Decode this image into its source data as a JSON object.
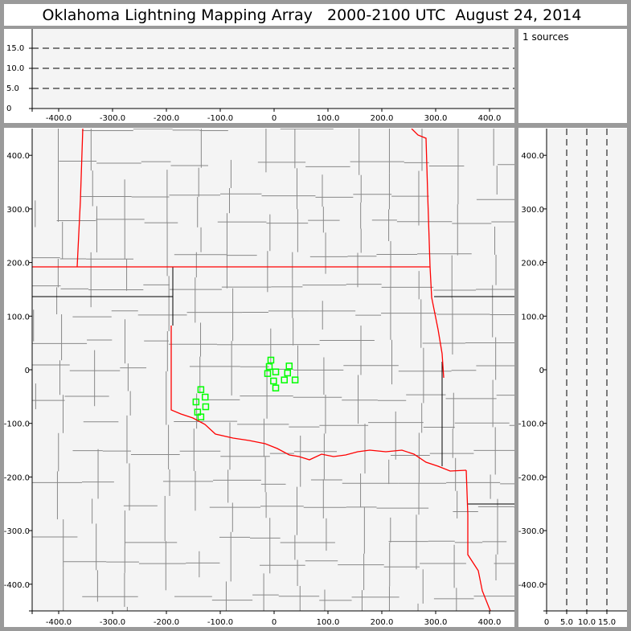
{
  "title": "Oklahoma Lightning Mapping Array   2000-2100 UTC  August 24, 2014",
  "legend": {
    "text": "1 sources"
  },
  "colors": {
    "station": "#00ff00",
    "state_border": "#ff0000",
    "county_border": "#888888",
    "plot_bg": "#f4f4f4",
    "frame": "#9a9a9a"
  },
  "chart_data": [
    {
      "type": "line",
      "panel": "altitude-vs-east-west",
      "xlim": [
        -450,
        445
      ],
      "ylim": [
        0,
        20
      ],
      "x_ticks": [
        "-400.0",
        "-300.0",
        "-200.0",
        "-100.0",
        "0",
        "100.0",
        "200.0",
        "300.0",
        "400.0"
      ],
      "x_tick_values": [
        -400,
        -300,
        -200,
        -100,
        0,
        100,
        200,
        300,
        400
      ],
      "y_ticks": [
        "0",
        "5.0",
        "10.0",
        "15.0"
      ],
      "y_tick_values": [
        0,
        5,
        10,
        15
      ],
      "grid": "dashed horizontal at 5, 10, 15"
    },
    {
      "type": "scatter",
      "panel": "plan-view-map",
      "xlim": [
        -450,
        445
      ],
      "ylim": [
        -450,
        450
      ],
      "x_ticks": [
        "-400.0",
        "-300.0",
        "-200.0",
        "-100.0",
        "0",
        "100.0",
        "200.0",
        "300.0",
        "400.0"
      ],
      "x_tick_values": [
        -400,
        -300,
        -200,
        -100,
        0,
        100,
        200,
        300,
        400
      ],
      "y_ticks": [
        "400.0",
        "300.0",
        "200.0",
        "100.0",
        "0",
        "-100.0",
        "-200.0",
        "-300.0",
        "-400.0"
      ],
      "y_tick_values": [
        400,
        300,
        200,
        100,
        0,
        -100,
        -200,
        -300,
        -400
      ],
      "marker": "hollow-square",
      "points": [
        {
          "x": -6,
          "y": 18
        },
        {
          "x": -9,
          "y": 6
        },
        {
          "x": 28,
          "y": 7
        },
        {
          "x": -12,
          "y": -7
        },
        {
          "x": 3,
          "y": -4
        },
        {
          "x": 25,
          "y": -6
        },
        {
          "x": -1,
          "y": -21
        },
        {
          "x": 19,
          "y": -19
        },
        {
          "x": 39,
          "y": -19
        },
        {
          "x": 3,
          "y": -34
        },
        {
          "x": -136,
          "y": -37
        },
        {
          "x": -128,
          "y": -51
        },
        {
          "x": -145,
          "y": -60
        },
        {
          "x": -127,
          "y": -69
        },
        {
          "x": -142,
          "y": -79
        },
        {
          "x": -136,
          "y": -88
        }
      ]
    },
    {
      "type": "line",
      "panel": "altitude-vs-north-south",
      "xlim": [
        0,
        20
      ],
      "ylim": [
        -450,
        450
      ],
      "x_ticks": [
        "0",
        "5.0",
        "10.0",
        "15.0"
      ],
      "x_tick_values": [
        0,
        5,
        10,
        15
      ],
      "y_ticks": [
        "400.0",
        "300.0",
        "200.0",
        "100.0",
        "0",
        "-100.0",
        "-200.0",
        "-300.0",
        "-400.0"
      ],
      "y_tick_values": [
        400,
        300,
        200,
        100,
        0,
        -100,
        -200,
        -300,
        -400
      ],
      "grid": "dashed vertical at 5, 10, 15"
    }
  ]
}
